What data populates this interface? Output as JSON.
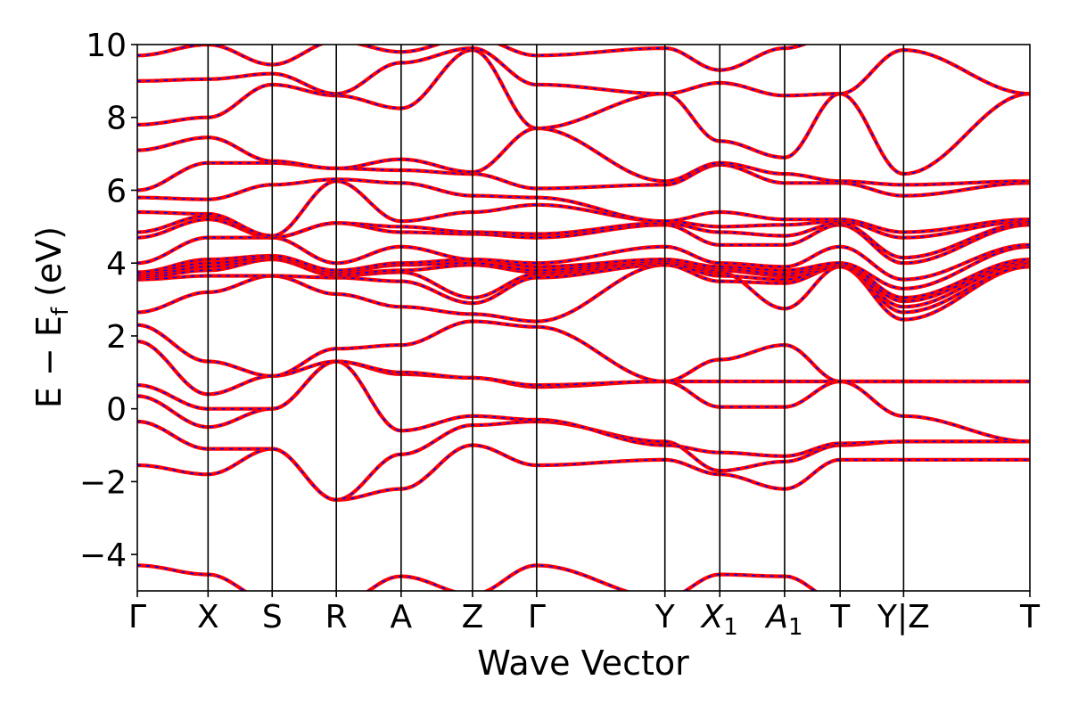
{
  "chart_data": {
    "type": "line",
    "title": "",
    "xlabel": "Wave Vector",
    "ylabel": "E − E",
    "ylabel_sub": "f",
    "ylabel_unit": " (eV)",
    "ylim": [
      -5,
      10
    ],
    "yticks": [
      -4,
      -2,
      0,
      2,
      4,
      6,
      8,
      10
    ],
    "ytick_labels": [
      "−4",
      "−2",
      "0",
      "2",
      "4",
      "6",
      "8",
      "10"
    ],
    "xlim": [
      0,
      13.5
    ],
    "kpoints": [
      {
        "x": 0.0,
        "label": "Γ"
      },
      {
        "x": 1.07,
        "label": "X"
      },
      {
        "x": 2.04,
        "label": "S"
      },
      {
        "x": 3.01,
        "label": "R"
      },
      {
        "x": 3.99,
        "label": "A"
      },
      {
        "x": 5.07,
        "label": "Z"
      },
      {
        "x": 6.04,
        "label": "Γ"
      },
      {
        "x": 7.98,
        "label": "Y"
      },
      {
        "x": 8.81,
        "label": "X",
        "sub": "1"
      },
      {
        "x": 9.79,
        "label": "A",
        "sub": "1"
      },
      {
        "x": 10.63,
        "label": "T"
      },
      {
        "x": 11.59,
        "label": "Y|Z"
      },
      {
        "x": 13.5,
        "label": "T"
      }
    ],
    "series_style": {
      "line1": {
        "color": "#ff0000",
        "dash": "solid"
      },
      "line2": {
        "color": "#0000ff",
        "dash": "dashed"
      }
    },
    "segments": [
      [
        0.0,
        1.07
      ],
      [
        1.07,
        2.04
      ],
      [
        2.04,
        3.01
      ],
      [
        3.01,
        3.99
      ],
      [
        3.99,
        5.07
      ],
      [
        5.07,
        6.04
      ],
      [
        6.04,
        7.98
      ],
      [
        7.98,
        8.81
      ],
      [
        8.81,
        9.79
      ],
      [
        9.79,
        10.63
      ],
      [
        10.63,
        11.59
      ],
      [
        11.59,
        13.5
      ]
    ],
    "bands": [
      [
        -4.3,
        -4.55,
        -5.3,
        -5.4,
        -4.6,
        -5.1,
        -4.3,
        -5.2,
        -4.55,
        -4.6,
        -5.3,
        -5.1,
        -5.3
      ],
      [
        -1.55,
        -1.8,
        -1.1,
        -2.5,
        -2.2,
        -1.0,
        -1.55,
        -1.4,
        -1.8,
        -2.2,
        -1.4,
        -1.4,
        -1.4
      ],
      [
        -0.35,
        -1.1,
        -1.1,
        -2.5,
        -1.25,
        -0.45,
        -0.35,
        -0.9,
        -1.7,
        -1.45,
        -1.0,
        -0.9,
        -0.9
      ],
      [
        0.35,
        -0.5,
        0.0,
        1.3,
        -0.6,
        -0.2,
        -0.3,
        -1.0,
        -1.2,
        -1.3,
        -0.95,
        -0.9,
        -0.9
      ],
      [
        0.65,
        0.0,
        0.0,
        1.3,
        0.95,
        0.85,
        0.6,
        0.75,
        0.05,
        0.05,
        0.75,
        -0.2,
        -0.9
      ],
      [
        1.85,
        0.4,
        0.9,
        1.3,
        1.0,
        0.85,
        0.65,
        0.75,
        0.75,
        0.75,
        0.75,
        0.75,
        0.75
      ],
      [
        2.3,
        1.3,
        0.9,
        1.65,
        1.75,
        2.4,
        2.25,
        0.75,
        1.35,
        1.75,
        0.75,
        0.75,
        0.75
      ],
      [
        2.65,
        3.2,
        3.65,
        3.15,
        2.8,
        2.6,
        2.4,
        3.95,
        3.75,
        2.75,
        3.9,
        2.45,
        3.9
      ],
      [
        3.55,
        3.65,
        3.65,
        3.6,
        3.5,
        2.9,
        3.6,
        3.95,
        3.5,
        3.45,
        3.9,
        2.65,
        3.9
      ],
      [
        3.6,
        3.8,
        4.1,
        3.65,
        3.75,
        3.05,
        3.7,
        4.0,
        3.65,
        3.55,
        3.9,
        2.8,
        4.0
      ],
      [
        3.65,
        3.9,
        4.15,
        3.7,
        3.8,
        3.95,
        3.75,
        4.05,
        3.8,
        3.65,
        3.95,
        2.95,
        4.05
      ],
      [
        3.7,
        4.0,
        4.15,
        3.75,
        3.95,
        4.0,
        3.8,
        4.1,
        3.85,
        3.7,
        4.0,
        3.05,
        4.1
      ],
      [
        3.75,
        4.1,
        4.2,
        3.8,
        4.0,
        4.1,
        3.9,
        4.1,
        3.9,
        3.8,
        4.0,
        3.3,
        4.45
      ],
      [
        4.0,
        4.7,
        4.7,
        4.0,
        4.45,
        4.1,
        4.0,
        4.45,
        4.0,
        3.9,
        4.45,
        3.55,
        4.5
      ],
      [
        4.7,
        5.2,
        4.7,
        5.1,
        4.85,
        4.8,
        4.7,
        5.05,
        4.5,
        4.5,
        5.05,
        4.0,
        5.05
      ],
      [
        4.85,
        5.3,
        4.7,
        5.1,
        5.0,
        4.85,
        4.8,
        5.1,
        4.85,
        4.75,
        5.1,
        4.15,
        5.1
      ],
      [
        5.4,
        5.35,
        4.75,
        6.25,
        5.15,
        5.4,
        5.6,
        5.15,
        5.0,
        5.05,
        5.15,
        4.7,
        5.15
      ],
      [
        5.8,
        5.75,
        6.15,
        6.3,
        6.2,
        5.85,
        5.8,
        5.15,
        5.4,
        5.2,
        5.2,
        4.85,
        5.2
      ],
      [
        6.0,
        6.75,
        6.75,
        6.6,
        6.55,
        6.45,
        6.05,
        6.15,
        6.7,
        6.2,
        6.2,
        5.85,
        6.2
      ],
      [
        7.1,
        7.45,
        6.8,
        6.6,
        6.85,
        6.5,
        7.7,
        6.25,
        6.75,
        6.45,
        6.25,
        6.15,
        6.25
      ],
      [
        7.8,
        8.0,
        8.9,
        8.6,
        8.25,
        9.85,
        7.7,
        8.65,
        7.35,
        6.9,
        8.65,
        6.45,
        8.65
      ],
      [
        9.0,
        9.05,
        9.2,
        8.65,
        9.5,
        9.9,
        8.9,
        8.65,
        8.95,
        8.6,
        8.65,
        9.85,
        8.65
      ],
      [
        9.7,
        10.0,
        9.45,
        10.1,
        9.8,
        10.2,
        9.7,
        9.9,
        9.3,
        9.9,
        10.3,
        10.1,
        10.3
      ]
    ]
  }
}
